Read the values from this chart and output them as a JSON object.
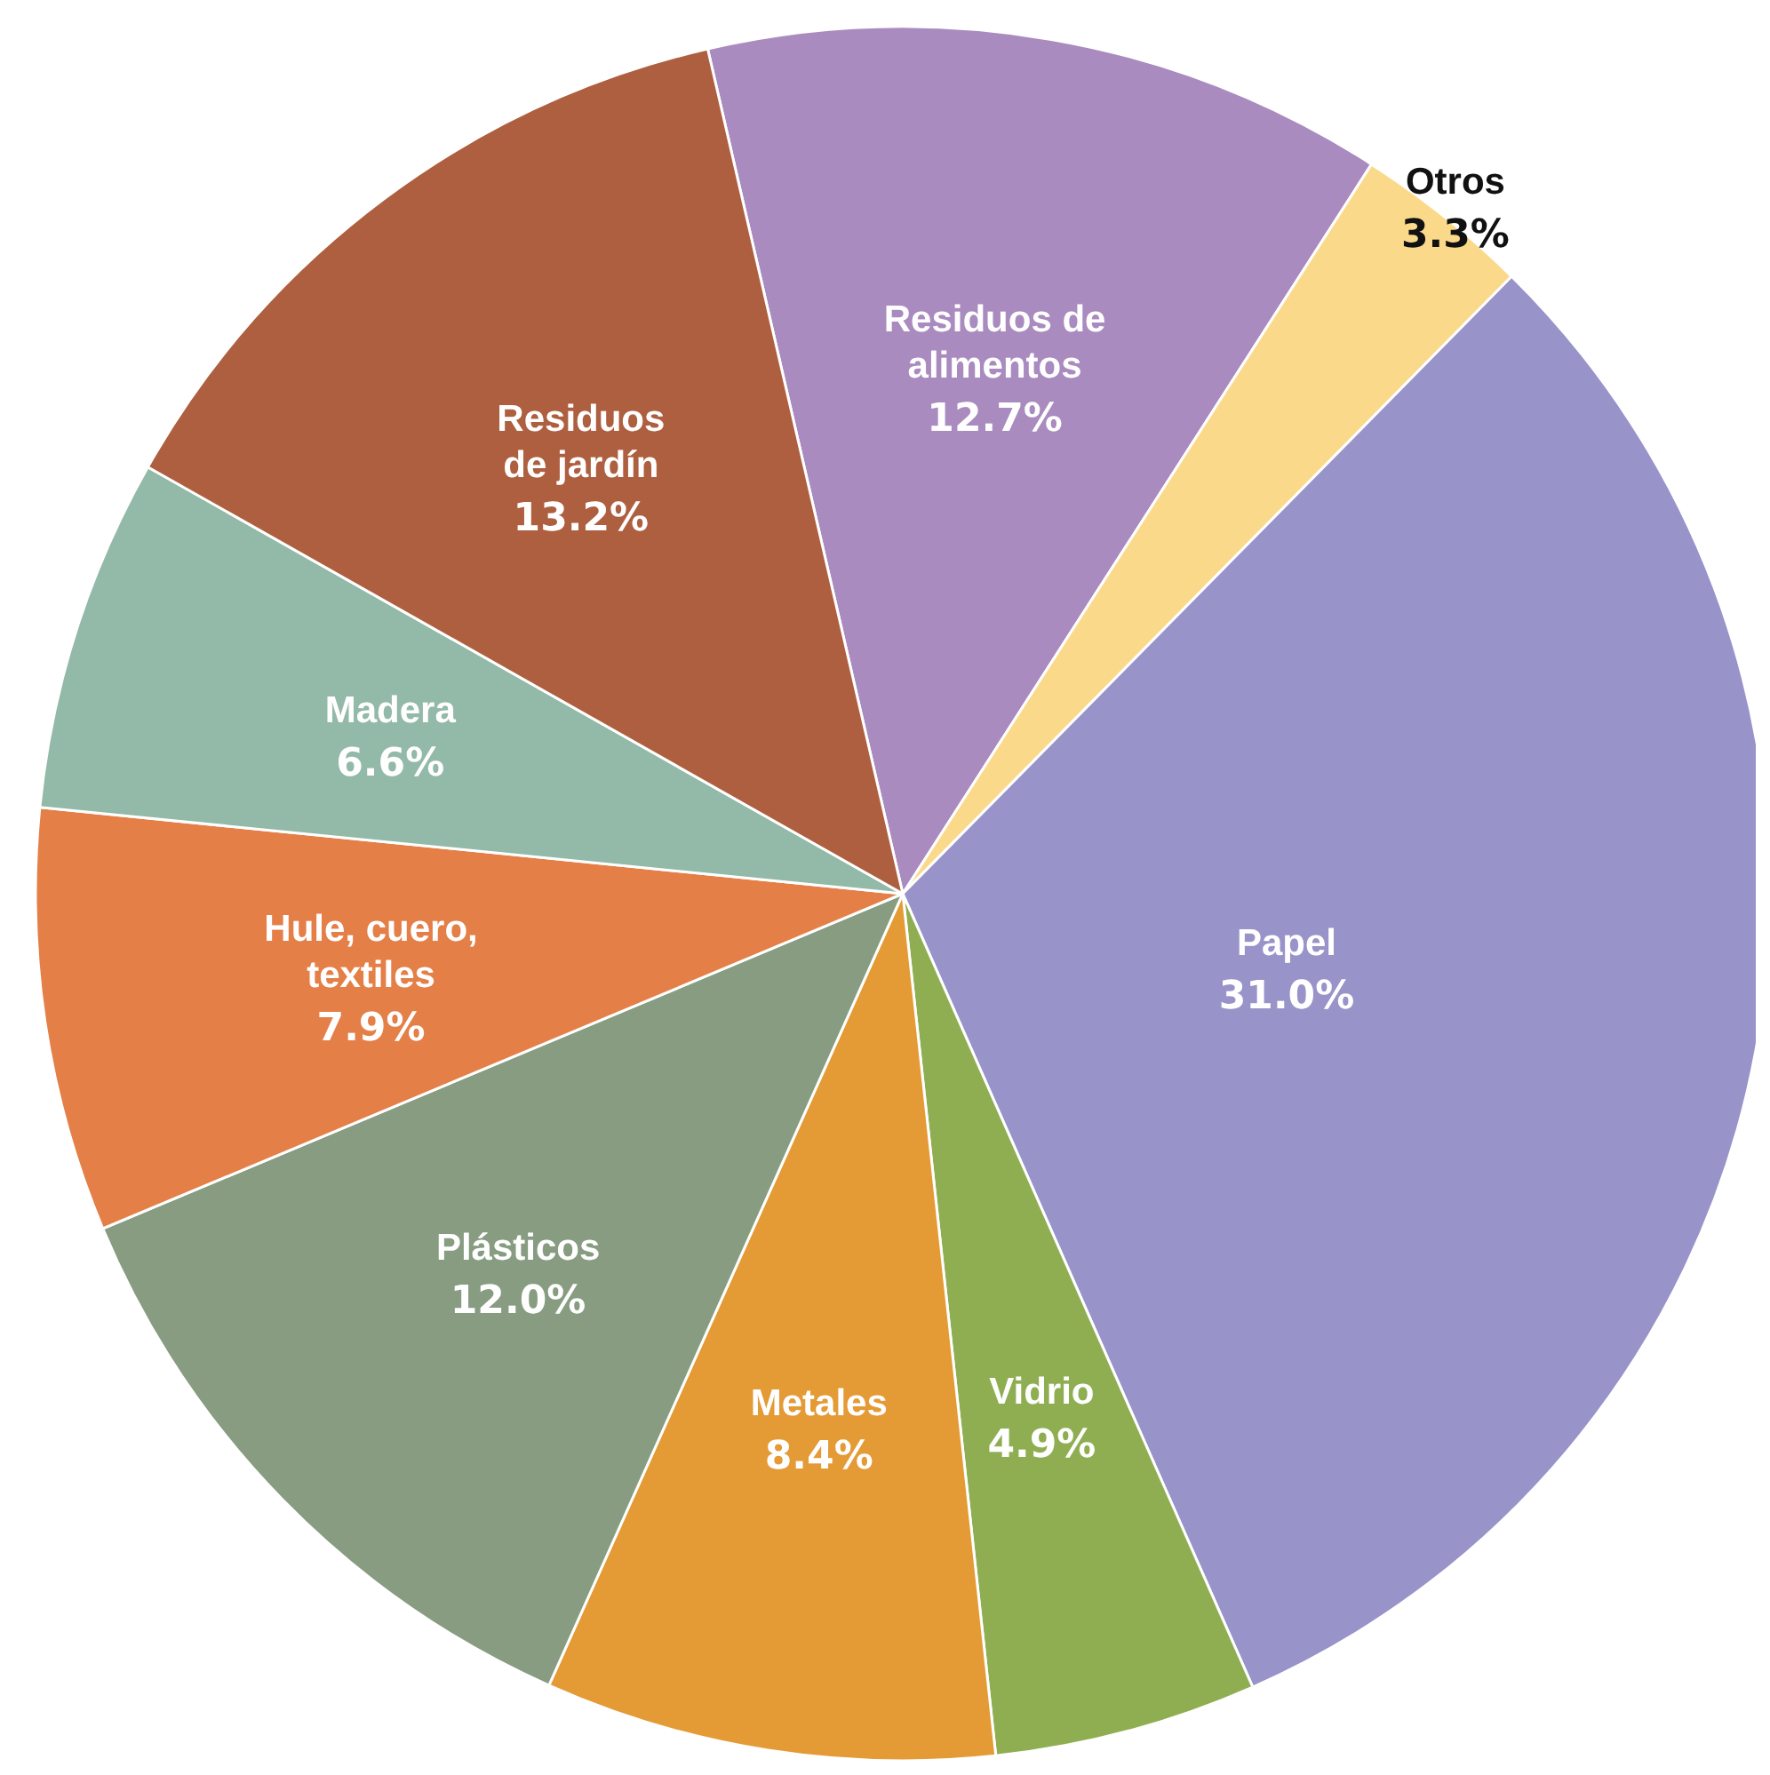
{
  "chart_data": {
    "type": "pie",
    "categories": [
      "Residuos de\nalimentos",
      "Otros",
      "Papel",
      "Vidrio",
      "Metales",
      "Plásticos",
      "Hule, cuero,\ntextiles",
      "Madera",
      "Residuos\nde jardín"
    ],
    "values": [
      12.7,
      3.3,
      31.0,
      4.9,
      8.4,
      12.0,
      7.9,
      6.6,
      13.2
    ],
    "value_labels": [
      "12.7%",
      "3.3%",
      "31.0%",
      "4.9%",
      "8.4%",
      "12.0%",
      "7.9%",
      "6.6%",
      "13.2%"
    ],
    "colors": [
      "#a98bbf",
      "#fbd98a",
      "#9893c9",
      "#8fae52",
      "#e49a35",
      "#879c80",
      "#e47f48",
      "#93b9a8",
      "#ae5f3f"
    ]
  }
}
